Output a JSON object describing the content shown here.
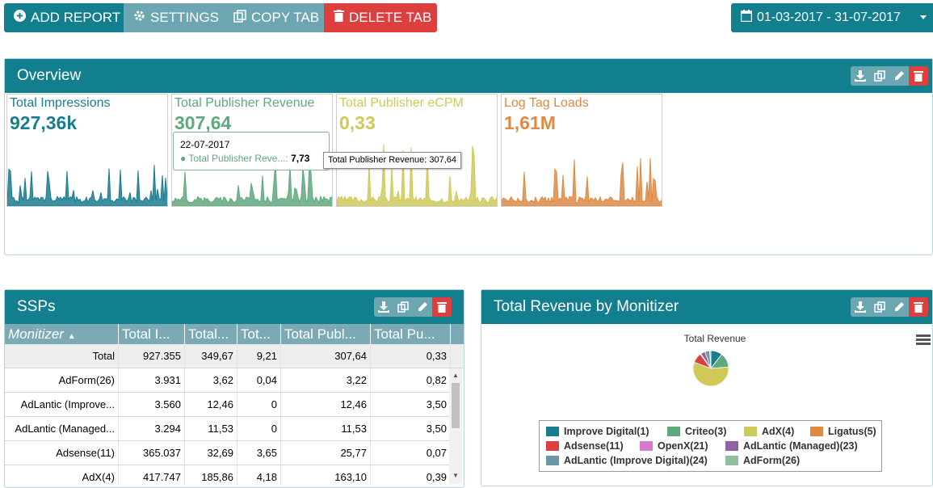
{
  "toolbar": {
    "add_label": "ADD REPORT",
    "settings_label": "SETTINGS",
    "copy_label": "COPY TAB",
    "delete_label": "DELETE TAB",
    "date_range": "01-03-2017 - 31-07-2017"
  },
  "overview": {
    "title": "Overview",
    "tiles": [
      {
        "title": "Total Impressions",
        "value": "927,36k",
        "color": "#1a7d8f"
      },
      {
        "title": "Total Publisher Revenue",
        "value": "307,64",
        "color": "#5fa97c"
      },
      {
        "title": "Total Publisher eCPM",
        "value": "0,33",
        "color": "#cfc95a"
      },
      {
        "title": "Log Tag Loads",
        "value": "1,61M",
        "color": "#de8a43"
      }
    ],
    "tooltip": {
      "date": "22-07-2017",
      "series": "Total Publisher Reve...:",
      "value": "7,73"
    },
    "hover_tip": "Total Publisher Revenue: 307,64"
  },
  "ssps": {
    "title": "SSPs",
    "columns": [
      "Monitizer",
      "Total I...",
      "Total...",
      "Tot...",
      "Total Publ...",
      "Total Pu..."
    ],
    "total_row": [
      "Total",
      "927.355",
      "349,67",
      "9,21",
      "307,64",
      "0,33"
    ],
    "rows": [
      [
        "AdForm(26)",
        "3.931",
        "3,62",
        "0,04",
        "3,22",
        "0,82"
      ],
      [
        "AdLantic (Improve...",
        "3.560",
        "12,46",
        "0",
        "12,46",
        "3,50"
      ],
      [
        "AdLantic (Managed...",
        "3.294",
        "11,53",
        "0",
        "11,53",
        "3,50"
      ],
      [
        "Adsense(11)",
        "365.037",
        "32,69",
        "3,65",
        "25,77",
        "0,07"
      ],
      [
        "AdX(4)",
        "417.747",
        "185,86",
        "4,18",
        "163,10",
        "0,39"
      ]
    ]
  },
  "revenue": {
    "title": "Total Revenue by Monitizer",
    "chart_title": "Total Revenue",
    "legend": [
      {
        "name": "Improve Digital(1)",
        "color": "#1a7d8f"
      },
      {
        "name": "Criteo(3)",
        "color": "#5fa97c"
      },
      {
        "name": "AdX(4)",
        "color": "#cfc95a"
      },
      {
        "name": "Ligatus(5)",
        "color": "#de8a43"
      },
      {
        "name": "Adsense(11)",
        "color": "#d9403f"
      },
      {
        "name": "OpenX(21)",
        "color": "#d57ad0"
      },
      {
        "name": "AdLantic (Managed)(23)",
        "color": "#8f61a6"
      },
      {
        "name": "AdLantic (Improve Digital)(24)",
        "color": "#6b97a6"
      },
      {
        "name": "AdForm(26)",
        "color": "#8fc19e"
      }
    ]
  },
  "chart_data": {
    "type": "pie",
    "title": "Total Revenue",
    "categories": [
      "Improve Digital(1)",
      "Criteo(3)",
      "AdX(4)",
      "Ligatus(5)",
      "Adsense(11)",
      "OpenX(21)",
      "AdLantic (Managed)(23)",
      "AdLantic (Improve Digital)(24)",
      "AdForm(26)"
    ],
    "values": [
      30,
      38,
      163,
      0,
      26,
      2,
      11.53,
      12.46,
      3.22
    ]
  }
}
